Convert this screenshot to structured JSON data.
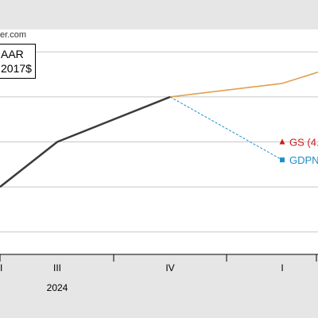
{
  "source": "er.com",
  "units_line1": "AAR",
  "units_line2": "2017$",
  "colors": {
    "background": "#e6e6e6",
    "plot": "#ffffff",
    "grid": "#c8c8c8",
    "gdp": "#3a3a3a",
    "gs": "#c81e1e",
    "gdpnow": "#1f8fc8",
    "gs_path": "#e0a050"
  },
  "chart_data": {
    "type": "line",
    "categories": [
      "II",
      "III",
      "IV",
      "I"
    ],
    "year_labels": [
      {
        "category": "III",
        "text": "2024"
      }
    ],
    "series": [
      {
        "values": [
          1.0,
          2.0,
          3.0,
          null
        ]
      },
      {
        "values": [
          null,
          null,
          3.0,
          3.3
        ]
      },
      {
        "values": [
          null,
          null,
          3.0,
          1.6
        ]
      }
    ],
    "point_labels": [
      {
        "text": "GS (4.",
        "category": "I",
        "y": 2.0,
        "marker": "triangle"
      },
      {
        "text": "GDPN",
        "category": "I",
        "y": 1.6,
        "marker": "square"
      }
    ],
    "ylim": [
      -0.5,
      4.5
    ],
    "grid": true
  }
}
